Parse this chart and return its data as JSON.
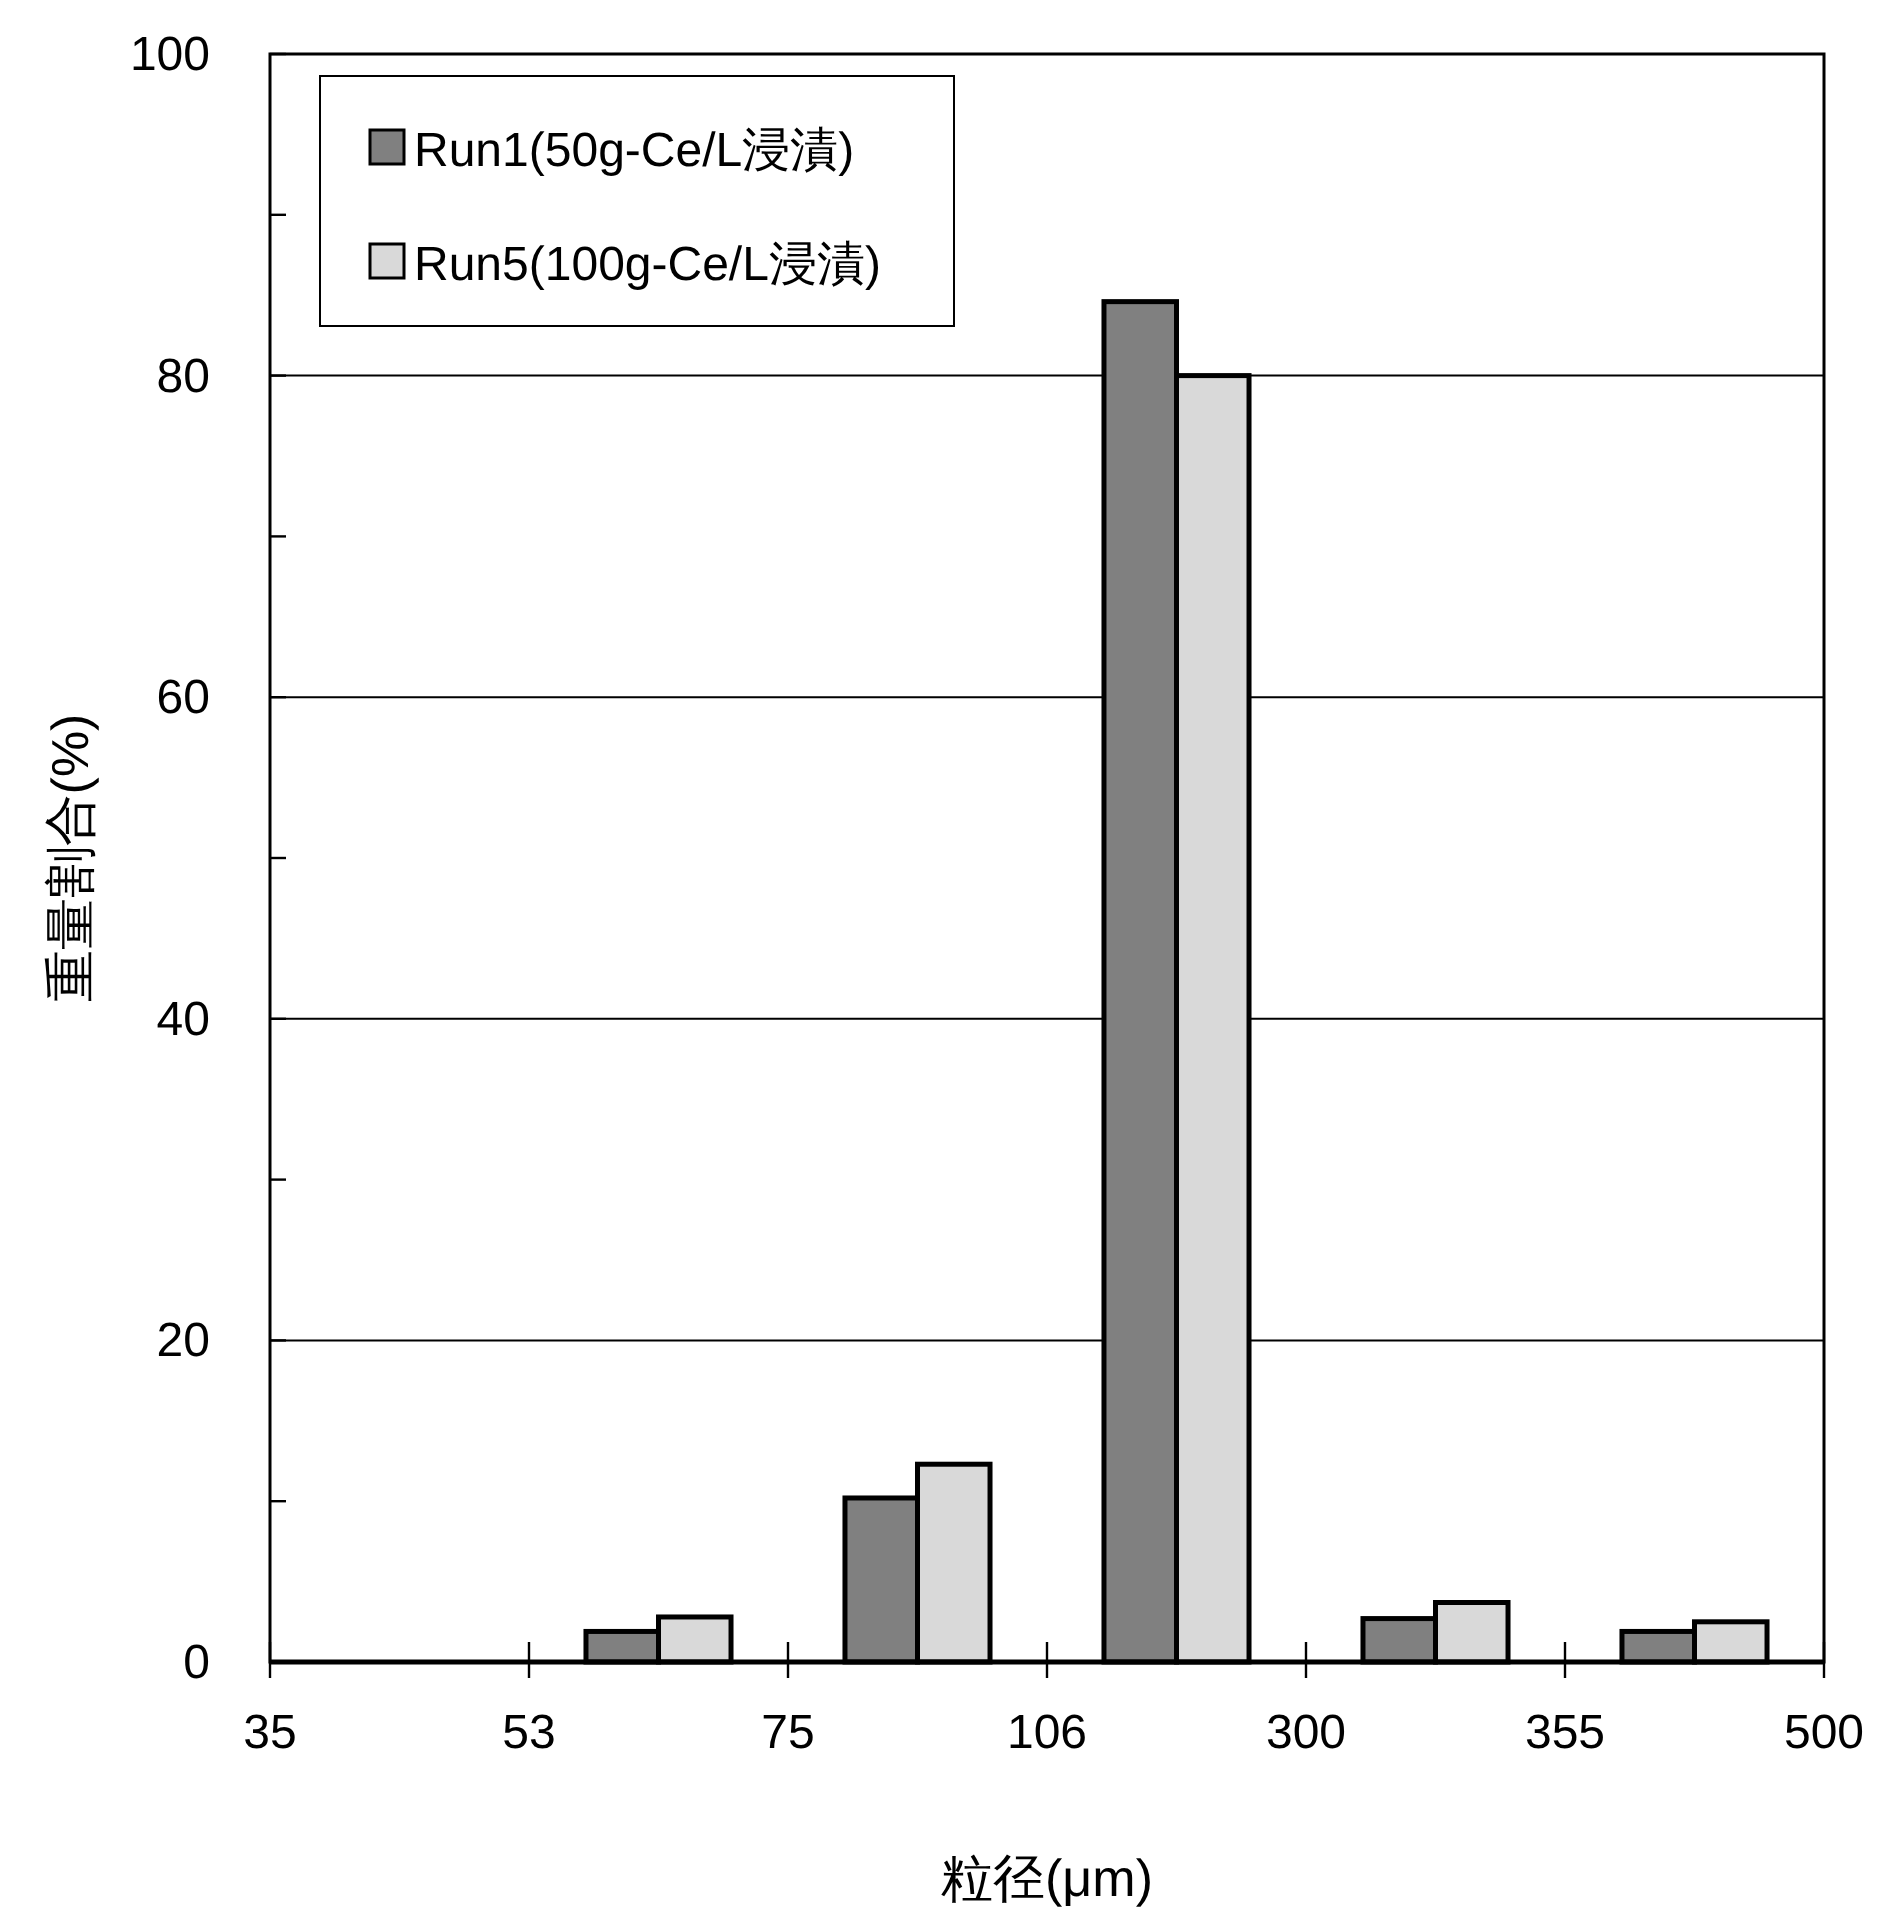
{
  "chart_data": {
    "type": "bar",
    "xlabel": "粒径(μm)",
    "ylabel": "重量割合(%)",
    "categories": [
      null,
      null,
      null,
      null,
      null,
      null
    ],
    "annotations": [
      "35",
      "53",
      "75",
      "106",
      "300",
      "355",
      "500"
    ],
    "series": [
      {
        "name": "Run1(50g-Ce/L浸漬)",
        "color": "#808080",
        "values": [
          0,
          1.9,
          10.2,
          84.6,
          2.7,
          1.9
        ]
      },
      {
        "name": "Run5(100g-Ce/L浸漬)",
        "color": "#d9d9d9",
        "values": [
          0,
          2.8,
          12.3,
          80.0,
          3.7,
          2.5
        ]
      }
    ],
    "ylim": [
      0,
      100
    ],
    "yticks": [
      0,
      {
        "value": 10,
        "label": null
      },
      20,
      {
        "value": 30,
        "label": null
      },
      40,
      {
        "value": 50,
        "label": null
      },
      60,
      {
        "value": 70,
        "label": null
      },
      80,
      {
        "value": 90,
        "label": null
      },
      100
    ],
    "grid": "y",
    "legend": "top left"
  }
}
